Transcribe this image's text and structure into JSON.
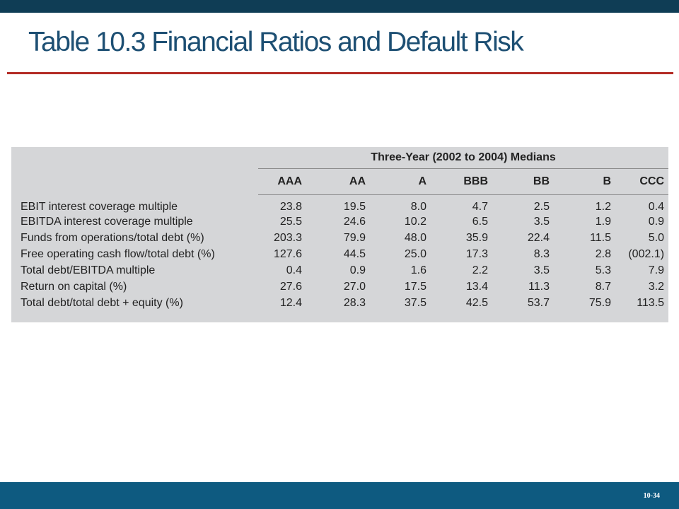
{
  "slide": {
    "title": "Table 10.3 Financial Ratios and Default Risk",
    "slide_number": "10-34"
  },
  "table": {
    "spanning_header": "Three-Year (2002 to 2004) Medians",
    "ratings": [
      "AAA",
      "AA",
      "A",
      "BBB",
      "BB",
      "B",
      "CCC"
    ],
    "rows": [
      {
        "label": "EBIT interest coverage multiple",
        "values": [
          "23.8",
          "19.5",
          "8.0",
          "4.7",
          "2.5",
          "1.2",
          "0.4"
        ]
      },
      {
        "label": "EBITDA interest coverage multiple",
        "values": [
          "25.5",
          "24.6",
          "10.2",
          "6.5",
          "3.5",
          "1.9",
          "0.9"
        ]
      },
      {
        "label": "Funds from operations/total debt (%)",
        "values": [
          "203.3",
          "79.9",
          "48.0",
          "35.9",
          "22.4",
          "11.5",
          "5.0"
        ]
      },
      {
        "label": "Free operating cash flow/total debt (%)",
        "values": [
          "127.6",
          "44.5",
          "25.0",
          "17.3",
          "8.3",
          "2.8",
          "(002.1)"
        ]
      },
      {
        "label": "Total debt/EBITDA multiple",
        "values": [
          "0.4",
          "0.9",
          "1.6",
          "2.2",
          "3.5",
          "5.3",
          "7.9"
        ]
      },
      {
        "label": "Return on capital (%)",
        "values": [
          "27.6",
          "27.0",
          "17.5",
          "13.4",
          "11.3",
          "8.7",
          "3.2"
        ]
      },
      {
        "label": "Total debt/total debt + equity (%)",
        "values": [
          "12.4",
          "28.3",
          "37.5",
          "42.5",
          "53.7",
          "75.9",
          "113.5"
        ]
      }
    ]
  },
  "colors": {
    "top_bar": "#0f3d55",
    "title": "#1d4f73",
    "rule": "#b32b25",
    "table_background": "#d5d6d8",
    "bottom_bar": "#0e5a80"
  }
}
